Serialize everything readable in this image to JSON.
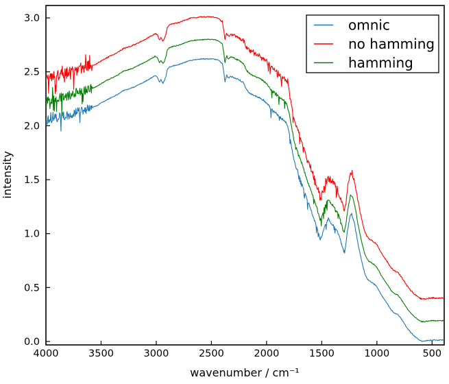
{
  "chart_data": {
    "type": "line",
    "title": "",
    "xlabel": "wavenumber / cm⁻¹",
    "ylabel": "intensity",
    "x_axis": {
      "min": 4000,
      "max": 390,
      "inverted": true,
      "ticks": [
        4000,
        3500,
        3000,
        2500,
        2000,
        1500,
        1000,
        500
      ]
    },
    "y_axis": {
      "min": -0.032,
      "max": 3.115,
      "ticks": [
        0.0,
        0.5,
        1.0,
        1.5,
        2.0,
        2.5,
        3.0
      ]
    },
    "grid": false,
    "legend": {
      "position": "upper right",
      "border_color": "#000000",
      "background": "#ffffff"
    },
    "series": [
      {
        "name": "omnic",
        "color": "#1f77b4",
        "offset": 0.0,
        "noise": [
          [
            4000,
            3580,
            0.042,
            0.1,
            0.14,
            0.6
          ],
          [
            3580,
            2400,
            0.004,
            0,
            0,
            0
          ],
          [
            2400,
            1985,
            0.007,
            0.02,
            0.02,
            0.7
          ],
          [
            1985,
            1445,
            0.01,
            0.13,
            0.09,
            0.95
          ],
          [
            1445,
            1165,
            0.01,
            0.06,
            0.05,
            0.9
          ],
          [
            1165,
            390,
            0.004,
            0,
            0,
            0
          ]
        ]
      },
      {
        "name": "no hamming",
        "color": "#ff0000",
        "offset": 0.39,
        "noise": [
          [
            4000,
            3580,
            0.055,
            0.12,
            0.17,
            0.6
          ],
          [
            3580,
            2430,
            0.005,
            0,
            0,
            0
          ],
          [
            2430,
            2240,
            0.01,
            0.03,
            0.03,
            0.6
          ],
          [
            2240,
            1985,
            0.02,
            0.06,
            0.04,
            0.7
          ],
          [
            1985,
            1640,
            0.018,
            0.14,
            0.1,
            0.9
          ],
          [
            1640,
            1330,
            0.035,
            0.15,
            0.08,
            0.75
          ],
          [
            1330,
            1150,
            0.018,
            0.08,
            0.06,
            0.8
          ],
          [
            1150,
            390,
            0.006,
            0,
            0,
            0
          ]
        ]
      },
      {
        "name": "hamming",
        "color": "#008000",
        "offset": 0.18,
        "noise": [
          [
            4000,
            3580,
            0.045,
            0.1,
            0.14,
            0.6
          ],
          [
            3580,
            2400,
            0.004,
            0,
            0,
            0
          ],
          [
            2400,
            1985,
            0.007,
            0.02,
            0.02,
            0.7
          ],
          [
            1985,
            1445,
            0.012,
            0.13,
            0.1,
            0.95
          ],
          [
            1445,
            1165,
            0.01,
            0.06,
            0.05,
            0.9
          ],
          [
            1165,
            390,
            0.004,
            0,
            0,
            0
          ]
        ]
      }
    ],
    "base_curve": [
      [
        4000,
        2.04
      ],
      [
        3950,
        2.06
      ],
      [
        3900,
        2.075
      ],
      [
        3850,
        2.09
      ],
      [
        3800,
        2.1
      ],
      [
        3750,
        2.12
      ],
      [
        3700,
        2.135
      ],
      [
        3650,
        2.145
      ],
      [
        3600,
        2.16
      ],
      [
        3550,
        2.18
      ],
      [
        3500,
        2.21
      ],
      [
        3450,
        2.24
      ],
      [
        3400,
        2.265
      ],
      [
        3350,
        2.29
      ],
      [
        3300,
        2.325
      ],
      [
        3250,
        2.34
      ],
      [
        3200,
        2.36
      ],
      [
        3150,
        2.385
      ],
      [
        3100,
        2.41
      ],
      [
        3050,
        2.44
      ],
      [
        3010,
        2.465
      ],
      [
        2990,
        2.455
      ],
      [
        2970,
        2.4
      ],
      [
        2958,
        2.43
      ],
      [
        2940,
        2.395
      ],
      [
        2925,
        2.42
      ],
      [
        2912,
        2.46
      ],
      [
        2900,
        2.52
      ],
      [
        2880,
        2.545
      ],
      [
        2850,
        2.555
      ],
      [
        2800,
        2.565
      ],
      [
        2750,
        2.585
      ],
      [
        2700,
        2.605
      ],
      [
        2650,
        2.612
      ],
      [
        2600,
        2.618
      ],
      [
        2550,
        2.62
      ],
      [
        2500,
        2.62
      ],
      [
        2460,
        2.615
      ],
      [
        2430,
        2.605
      ],
      [
        2400,
        2.575
      ],
      [
        2385,
        2.48
      ],
      [
        2378,
        2.4
      ],
      [
        2370,
        2.435
      ],
      [
        2362,
        2.47
      ],
      [
        2352,
        2.45
      ],
      [
        2342,
        2.44
      ],
      [
        2330,
        2.455
      ],
      [
        2300,
        2.45
      ],
      [
        2270,
        2.435
      ],
      [
        2240,
        2.42
      ],
      [
        2210,
        2.4
      ],
      [
        2180,
        2.33
      ],
      [
        2150,
        2.3
      ],
      [
        2120,
        2.285
      ],
      [
        2090,
        2.27
      ],
      [
        2060,
        2.26
      ],
      [
        2030,
        2.235
      ],
      [
        2000,
        2.21
      ],
      [
        1970,
        2.17
      ],
      [
        1940,
        2.135
      ],
      [
        1910,
        2.115
      ],
      [
        1880,
        2.08
      ],
      [
        1850,
        2.055
      ],
      [
        1825,
        2.035
      ],
      [
        1805,
        1.98
      ],
      [
        1790,
        1.9
      ],
      [
        1772,
        1.8
      ],
      [
        1755,
        1.7
      ],
      [
        1735,
        1.62
      ],
      [
        1713,
        1.57
      ],
      [
        1690,
        1.5
      ],
      [
        1665,
        1.42
      ],
      [
        1650,
        1.37
      ],
      [
        1628,
        1.3
      ],
      [
        1607,
        1.25
      ],
      [
        1588,
        1.19
      ],
      [
        1565,
        1.12
      ],
      [
        1545,
        1.06
      ],
      [
        1528,
        1.0
      ],
      [
        1517,
        0.95
      ],
      [
        1505,
        0.96
      ],
      [
        1490,
        1.01
      ],
      [
        1472,
        1.07
      ],
      [
        1455,
        1.11
      ],
      [
        1445,
        1.13
      ],
      [
        1430,
        1.12
      ],
      [
        1415,
        1.09
      ],
      [
        1400,
        1.085
      ],
      [
        1385,
        1.06
      ],
      [
        1370,
        1.04
      ],
      [
        1350,
        1.0
      ],
      [
        1330,
        0.94
      ],
      [
        1310,
        0.87
      ],
      [
        1298,
        0.83
      ],
      [
        1285,
        0.88
      ],
      [
        1270,
        1.0
      ],
      [
        1255,
        1.1
      ],
      [
        1240,
        1.17
      ],
      [
        1232,
        1.18
      ],
      [
        1220,
        1.15
      ],
      [
        1205,
        1.1
      ],
      [
        1190,
        1.02
      ],
      [
        1170,
        0.9
      ],
      [
        1150,
        0.8
      ],
      [
        1130,
        0.71
      ],
      [
        1110,
        0.63
      ],
      [
        1090,
        0.585
      ],
      [
        1075,
        0.565
      ],
      [
        1050,
        0.55
      ],
      [
        1030,
        0.535
      ],
      [
        1010,
        0.52
      ],
      [
        990,
        0.49
      ],
      [
        960,
        0.43
      ],
      [
        930,
        0.385
      ],
      [
        900,
        0.34
      ],
      [
        873,
        0.295
      ],
      [
        850,
        0.27
      ],
      [
        830,
        0.258
      ],
      [
        810,
        0.25
      ],
      [
        790,
        0.225
      ],
      [
        770,
        0.195
      ],
      [
        750,
        0.165
      ],
      [
        730,
        0.13
      ],
      [
        710,
        0.105
      ],
      [
        690,
        0.08
      ],
      [
        670,
        0.06
      ],
      [
        650,
        0.04
      ],
      [
        630,
        0.025
      ],
      [
        610,
        0.01
      ],
      [
        590,
        0.003
      ],
      [
        570,
        0.004
      ],
      [
        550,
        0.008
      ],
      [
        520,
        0.012
      ],
      [
        480,
        0.013
      ],
      [
        440,
        0.012
      ],
      [
        390,
        0.013
      ]
    ]
  }
}
